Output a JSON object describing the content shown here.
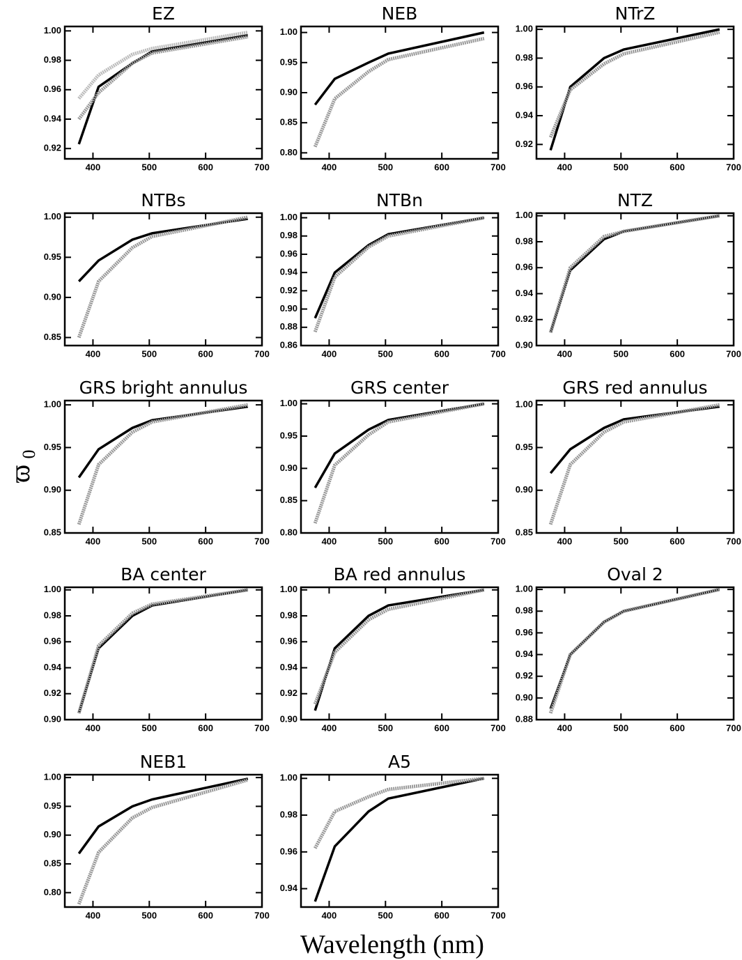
{
  "chart_data": [
    {
      "type": "line",
      "title": "EZ",
      "x": [
        375,
        410,
        470,
        505,
        675
      ],
      "xlim": [
        350,
        700
      ],
      "ylim": [
        0.913,
        1.003
      ],
      "xticks": [
        400,
        500,
        600,
        700
      ],
      "yticks": [
        {
          "value": 0.92,
          "label": "0.92"
        },
        {
          "value": 0.94,
          "label": "0.94"
        },
        {
          "value": 0.96,
          "label": "0.96"
        },
        {
          "value": 0.98,
          "label": "0.98"
        },
        {
          "value": 1,
          "label": "1.00"
        }
      ],
      "series": [
        {
          "color": "#000000",
          "values": [
            0.923,
            0.962,
            0.978,
            0.986,
            0.997
          ]
        },
        {
          "color": "#999999",
          "values": [
            0.94,
            0.958,
            0.978,
            0.985,
            0.996
          ]
        },
        {
          "color": "#bbbbbb",
          "values": [
            0.954,
            0.97,
            0.984,
            0.988,
            0.999
          ]
        }
      ]
    },
    {
      "type": "line",
      "title": "NEB",
      "x": [
        375,
        410,
        470,
        505,
        675
      ],
      "xlim": [
        350,
        700
      ],
      "ylim": [
        0.79,
        1.01
      ],
      "xticks": [
        400,
        500,
        600,
        700
      ],
      "yticks": [
        {
          "value": 0.8,
          "label": "0.80"
        },
        {
          "value": 0.85,
          "label": "0.85"
        },
        {
          "value": 0.9,
          "label": "0.90"
        },
        {
          "value": 0.95,
          "label": "0.95"
        },
        {
          "value": 1,
          "label": "1.00"
        }
      ],
      "series": [
        {
          "color": "#000000",
          "values": [
            0.88,
            0.923,
            0.95,
            0.965,
            1.0
          ]
        },
        {
          "color": "#999999",
          "values": [
            0.81,
            0.89,
            0.935,
            0.955,
            0.99
          ]
        }
      ]
    },
    {
      "type": "line",
      "title": "NTrZ",
      "x": [
        375,
        410,
        470,
        505,
        675
      ],
      "xlim": [
        350,
        700
      ],
      "ylim": [
        0.91,
        1.002
      ],
      "xticks": [
        400,
        500,
        600,
        700
      ],
      "yticks": [
        {
          "value": 0.92,
          "label": "0.92"
        },
        {
          "value": 0.94,
          "label": "0.94"
        },
        {
          "value": 0.96,
          "label": "0.96"
        },
        {
          "value": 0.98,
          "label": "0.98"
        },
        {
          "value": 1,
          "label": "1.00"
        }
      ],
      "series": [
        {
          "color": "#000000",
          "values": [
            0.916,
            0.96,
            0.98,
            0.986,
            1.0
          ]
        },
        {
          "color": "#999999",
          "values": [
            0.925,
            0.958,
            0.976,
            0.983,
            0.998
          ]
        }
      ]
    },
    {
      "type": "line",
      "title": "NTBs",
      "x": [
        375,
        410,
        470,
        505,
        675
      ],
      "xlim": [
        350,
        700
      ],
      "ylim": [
        0.84,
        1.005
      ],
      "xticks": [
        400,
        500,
        600,
        700
      ],
      "yticks": [
        {
          "value": 0.85,
          "label": "0.85"
        },
        {
          "value": 0.9,
          "label": "0.90"
        },
        {
          "value": 0.95,
          "label": "0.95"
        },
        {
          "value": 1,
          "label": "1.00"
        }
      ],
      "series": [
        {
          "color": "#000000",
          "values": [
            0.92,
            0.946,
            0.972,
            0.98,
            0.998
          ]
        },
        {
          "color": "#999999",
          "values": [
            0.85,
            0.92,
            0.962,
            0.976,
            1.0
          ]
        }
      ]
    },
    {
      "type": "line",
      "title": "NTBn",
      "x": [
        375,
        410,
        470,
        505,
        675
      ],
      "xlim": [
        350,
        700
      ],
      "ylim": [
        0.86,
        1.005
      ],
      "xticks": [
        400,
        500,
        600,
        700
      ],
      "yticks": [
        {
          "value": 0.86,
          "label": "0.86"
        },
        {
          "value": 0.88,
          "label": "0.88"
        },
        {
          "value": 0.9,
          "label": "0.90"
        },
        {
          "value": 0.92,
          "label": "0.92"
        },
        {
          "value": 0.94,
          "label": "0.94"
        },
        {
          "value": 0.96,
          "label": "0.96"
        },
        {
          "value": 0.98,
          "label": "0.98"
        },
        {
          "value": 1,
          "label": "1.00"
        }
      ],
      "series": [
        {
          "color": "#000000",
          "values": [
            0.89,
            0.94,
            0.97,
            0.982,
            1.0
          ]
        },
        {
          "color": "#999999",
          "values": [
            0.875,
            0.935,
            0.968,
            0.98,
            1.0
          ]
        }
      ]
    },
    {
      "type": "line",
      "title": "NTZ",
      "x": [
        375,
        410,
        470,
        505,
        675
      ],
      "xlim": [
        350,
        700
      ],
      "ylim": [
        0.9,
        1.002
      ],
      "xticks": [
        400,
        500,
        600,
        700
      ],
      "yticks": [
        {
          "value": 0.9,
          "label": "0.90"
        },
        {
          "value": 0.92,
          "label": "0.92"
        },
        {
          "value": 0.94,
          "label": "0.94"
        },
        {
          "value": 0.96,
          "label": "0.96"
        },
        {
          "value": 0.98,
          "label": "0.98"
        },
        {
          "value": 1,
          "label": "1.00"
        }
      ],
      "series": [
        {
          "color": "#000000",
          "values": [
            0.91,
            0.958,
            0.982,
            0.988,
            1.0
          ]
        },
        {
          "color": "#999999",
          "values": [
            0.91,
            0.96,
            0.984,
            0.988,
            1.0
          ]
        }
      ]
    },
    {
      "type": "line",
      "title": "GRS bright annulus",
      "x": [
        375,
        410,
        470,
        505,
        675
      ],
      "xlim": [
        350,
        700
      ],
      "ylim": [
        0.85,
        1.005
      ],
      "xticks": [
        400,
        500,
        600,
        700
      ],
      "yticks": [
        {
          "value": 0.85,
          "label": "0.85"
        },
        {
          "value": 0.9,
          "label": "0.90"
        },
        {
          "value": 0.95,
          "label": "0.95"
        },
        {
          "value": 1,
          "label": "1.00"
        }
      ],
      "series": [
        {
          "color": "#000000",
          "values": [
            0.915,
            0.948,
            0.973,
            0.982,
            0.998
          ]
        },
        {
          "color": "#999999",
          "values": [
            0.86,
            0.93,
            0.968,
            0.98,
            1.0
          ]
        }
      ]
    },
    {
      "type": "line",
      "title": "GRS center",
      "x": [
        375,
        410,
        470,
        505,
        675
      ],
      "xlim": [
        350,
        700
      ],
      "ylim": [
        0.8,
        1.005
      ],
      "xticks": [
        400,
        500,
        600,
        700
      ],
      "yticks": [
        {
          "value": 0.8,
          "label": "0.80"
        },
        {
          "value": 0.85,
          "label": "0.85"
        },
        {
          "value": 0.9,
          "label": "0.90"
        },
        {
          "value": 0.95,
          "label": "0.95"
        },
        {
          "value": 1,
          "label": "1.00"
        }
      ],
      "series": [
        {
          "color": "#000000",
          "values": [
            0.87,
            0.923,
            0.96,
            0.975,
            1.0
          ]
        },
        {
          "color": "#999999",
          "values": [
            0.815,
            0.905,
            0.952,
            0.972,
            1.0
          ]
        }
      ]
    },
    {
      "type": "line",
      "title": "GRS red annulus",
      "x": [
        375,
        410,
        470,
        505,
        675
      ],
      "xlim": [
        350,
        700
      ],
      "ylim": [
        0.85,
        1.005
      ],
      "xticks": [
        400,
        500,
        600,
        700
      ],
      "yticks": [
        {
          "value": 0.85,
          "label": "0.85"
        },
        {
          "value": 0.9,
          "label": "0.90"
        },
        {
          "value": 0.95,
          "label": "0.95"
        },
        {
          "value": 1,
          "label": "1.00"
        }
      ],
      "series": [
        {
          "color": "#000000",
          "values": [
            0.92,
            0.948,
            0.973,
            0.983,
            0.998
          ]
        },
        {
          "color": "#999999",
          "values": [
            0.86,
            0.93,
            0.968,
            0.98,
            1.0
          ]
        }
      ]
    },
    {
      "type": "line",
      "title": "BA center",
      "x": [
        375,
        410,
        470,
        505,
        675
      ],
      "xlim": [
        350,
        700
      ],
      "ylim": [
        0.9,
        1.002
      ],
      "xticks": [
        400,
        500,
        600,
        700
      ],
      "yticks": [
        {
          "value": 0.9,
          "label": "0.90"
        },
        {
          "value": 0.92,
          "label": "0.92"
        },
        {
          "value": 0.94,
          "label": "0.94"
        },
        {
          "value": 0.96,
          "label": "0.96"
        },
        {
          "value": 0.98,
          "label": "0.98"
        },
        {
          "value": 1,
          "label": "1.00"
        }
      ],
      "series": [
        {
          "color": "#000000",
          "values": [
            0.905,
            0.955,
            0.98,
            0.988,
            1.0
          ]
        },
        {
          "color": "#999999",
          "values": [
            0.905,
            0.957,
            0.982,
            0.989,
            1.0
          ]
        }
      ]
    },
    {
      "type": "line",
      "title": "BA red annulus",
      "x": [
        375,
        410,
        470,
        505,
        675
      ],
      "xlim": [
        350,
        700
      ],
      "ylim": [
        0.9,
        1.002
      ],
      "xticks": [
        400,
        500,
        600,
        700
      ],
      "yticks": [
        {
          "value": 0.9,
          "label": "0.90"
        },
        {
          "value": 0.92,
          "label": "0.92"
        },
        {
          "value": 0.94,
          "label": "0.94"
        },
        {
          "value": 0.96,
          "label": "0.96"
        },
        {
          "value": 0.98,
          "label": "0.98"
        },
        {
          "value": 1,
          "label": "1.00"
        }
      ],
      "series": [
        {
          "color": "#000000",
          "values": [
            0.907,
            0.955,
            0.98,
            0.988,
            1.0
          ]
        },
        {
          "color": "#999999",
          "values": [
            0.912,
            0.952,
            0.977,
            0.985,
            1.0
          ]
        }
      ]
    },
    {
      "type": "line",
      "title": "Oval 2",
      "x": [
        375,
        410,
        470,
        505,
        675
      ],
      "xlim": [
        350,
        700
      ],
      "ylim": [
        0.88,
        1.002
      ],
      "xticks": [
        400,
        500,
        600,
        700
      ],
      "yticks": [
        {
          "value": 0.88,
          "label": "0.88"
        },
        {
          "value": 0.9,
          "label": "0.90"
        },
        {
          "value": 0.92,
          "label": "0.92"
        },
        {
          "value": 0.94,
          "label": "0.94"
        },
        {
          "value": 0.96,
          "label": "0.96"
        },
        {
          "value": 0.98,
          "label": "0.98"
        },
        {
          "value": 1,
          "label": "1.00"
        }
      ],
      "series": [
        {
          "color": "#000000",
          "values": [
            0.89,
            0.94,
            0.97,
            0.98,
            1.0
          ]
        },
        {
          "color": "#999999",
          "values": [
            0.886,
            0.94,
            0.97,
            0.98,
            1.0
          ]
        }
      ]
    },
    {
      "type": "line",
      "title": "NEB1",
      "x": [
        375,
        410,
        470,
        505,
        675
      ],
      "xlim": [
        350,
        700
      ],
      "ylim": [
        0.775,
        1.005
      ],
      "xticks": [
        400,
        500,
        600,
        700
      ],
      "yticks": [
        {
          "value": 0.8,
          "label": "0.80"
        },
        {
          "value": 0.85,
          "label": "0.85"
        },
        {
          "value": 0.9,
          "label": "0.90"
        },
        {
          "value": 0.95,
          "label": "0.95"
        },
        {
          "value": 1,
          "label": "1.00"
        }
      ],
      "series": [
        {
          "color": "#000000",
          "values": [
            0.868,
            0.915,
            0.95,
            0.962,
            0.998
          ]
        },
        {
          "color": "#999999",
          "values": [
            0.78,
            0.87,
            0.93,
            0.948,
            0.996
          ]
        }
      ]
    },
    {
      "type": "line",
      "title": "A5",
      "x": [
        375,
        410,
        470,
        505,
        675
      ],
      "xlim": [
        350,
        700
      ],
      "ylim": [
        0.93,
        1.002
      ],
      "xticks": [
        400,
        500,
        600,
        700
      ],
      "yticks": [
        {
          "value": 0.94,
          "label": "0.94"
        },
        {
          "value": 0.96,
          "label": "0.96"
        },
        {
          "value": 0.98,
          "label": "0.98"
        },
        {
          "value": 1,
          "label": "1.00"
        }
      ],
      "series": [
        {
          "color": "#000000",
          "values": [
            0.933,
            0.963,
            0.982,
            0.989,
            1.0
          ]
        },
        {
          "color": "#999999",
          "values": [
            0.962,
            0.982,
            0.99,
            0.994,
            1.0
          ]
        }
      ]
    }
  ],
  "figure": {
    "ylabel": "ϖ",
    "ylabel_subscript": "0",
    "xlabel": "Wavelength (nm)"
  }
}
